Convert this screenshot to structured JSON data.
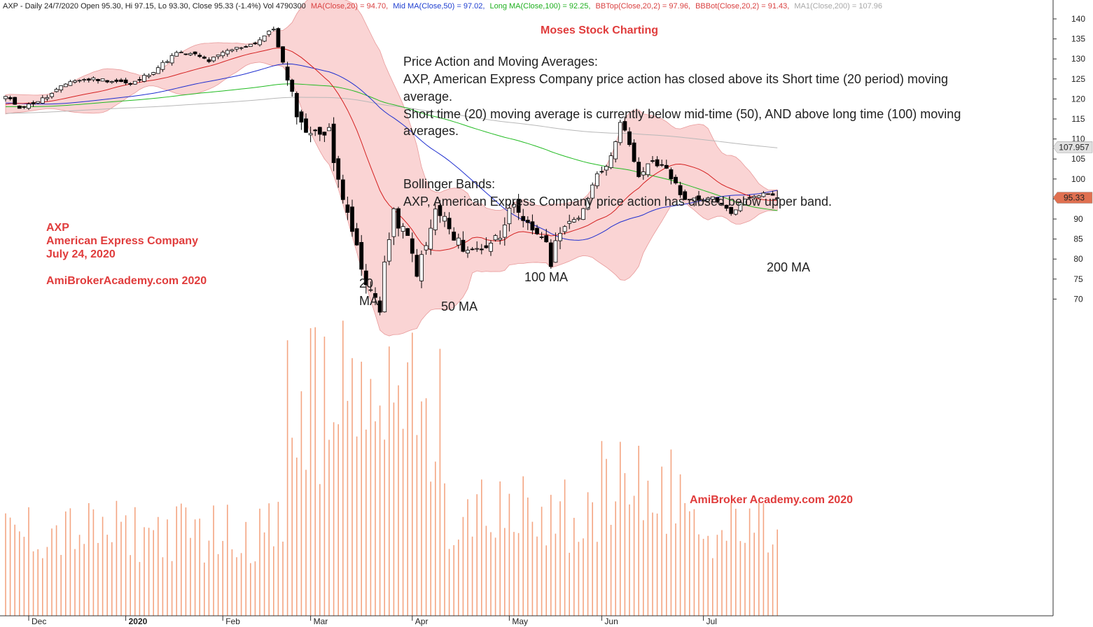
{
  "header": {
    "symbol_info": "AXP - Daily 24/7/2020 Open 95.30, Hi 97.15, Lo 93.30, Close 95.33 (-1.4%) Vol 4790300",
    "ma20": "MA(Close,20) = 94.70,",
    "ma50": "Mid MA(Close,50) = 97.02,",
    "ma100": "Long MA(Close,100) = 92.25,",
    "bbtop": "BBTop(Close,20,2) = 97.96,",
    "bbbot": "BBBot(Close,20,2) = 91.43,",
    "ma200": "MA1(Close,200) = 107.96"
  },
  "title": "Moses Stock Charting",
  "left_label": {
    "ticker": "AXP",
    "company": "American Express Company",
    "date": "July 24, 2020",
    "site": "AmiBrokerAcademy.com  2020"
  },
  "bottom_site": "AmiBroker Academy.com  2020",
  "notes": {
    "line1": "Price Action and Moving Averages:",
    "line2": "AXP, American Express Company price action has closed above its Short time (20 period) moving",
    "line3": "average.",
    "line4": "Short time (20) moving average is currently below mid-time (50), AND above long time (100) moving",
    "line5": "averages.",
    "line6": "Bollinger Bands:",
    "line7": "AXP, American Express Company price action has closed below upper band."
  },
  "ma_labels": {
    "ma20_a": "20",
    "ma20_b": "MA",
    "ma50": "50 MA",
    "ma100": "100 MA",
    "ma200": "200 MA"
  },
  "price_tags": {
    "ma200_value": "107.957",
    "close_value": "95.33"
  },
  "chart_data": {
    "type": "candlestick",
    "y_ticks": [
      70,
      75,
      80,
      85,
      90,
      95,
      100,
      105,
      110,
      115,
      120,
      125,
      130,
      135,
      140
    ],
    "ylim": [
      65.5,
      142.5
    ],
    "x_month_labels": [
      {
        "label": "Dec",
        "date": "2019-12-02"
      },
      {
        "label": "2020",
        "date": "2020-01-02"
      },
      {
        "label": "Feb",
        "date": "2020-02-03"
      },
      {
        "label": "Mar",
        "date": "2020-03-02"
      },
      {
        "label": "Apr",
        "date": "2020-04-01"
      },
      {
        "label": "May",
        "date": "2020-05-01"
      },
      {
        "label": "Jun",
        "date": "2020-06-01"
      },
      {
        "label": "Jul",
        "date": "2020-07-01"
      }
    ],
    "date_range": [
      "2019-11-22",
      "2020-07-24"
    ],
    "colors": {
      "up": "#ffffff",
      "down": "#000000",
      "ma20": "#d42020",
      "ma50": "#1f2fd0",
      "ma100": "#22bb22",
      "ma200": "#b8b8b8",
      "band_fill": "#f8c6c6",
      "band_edge": "#e89a9a",
      "volume": "#f4a582",
      "header_red": "#d94040",
      "header_blue": "#2040d0",
      "header_green": "#20b020",
      "header_gray": "#a8a8a8",
      "close_tag": "#e07050",
      "ma200_tag": "#e0e0e0"
    },
    "close_tag": 95.33,
    "ma200_tag": 107.957
  }
}
